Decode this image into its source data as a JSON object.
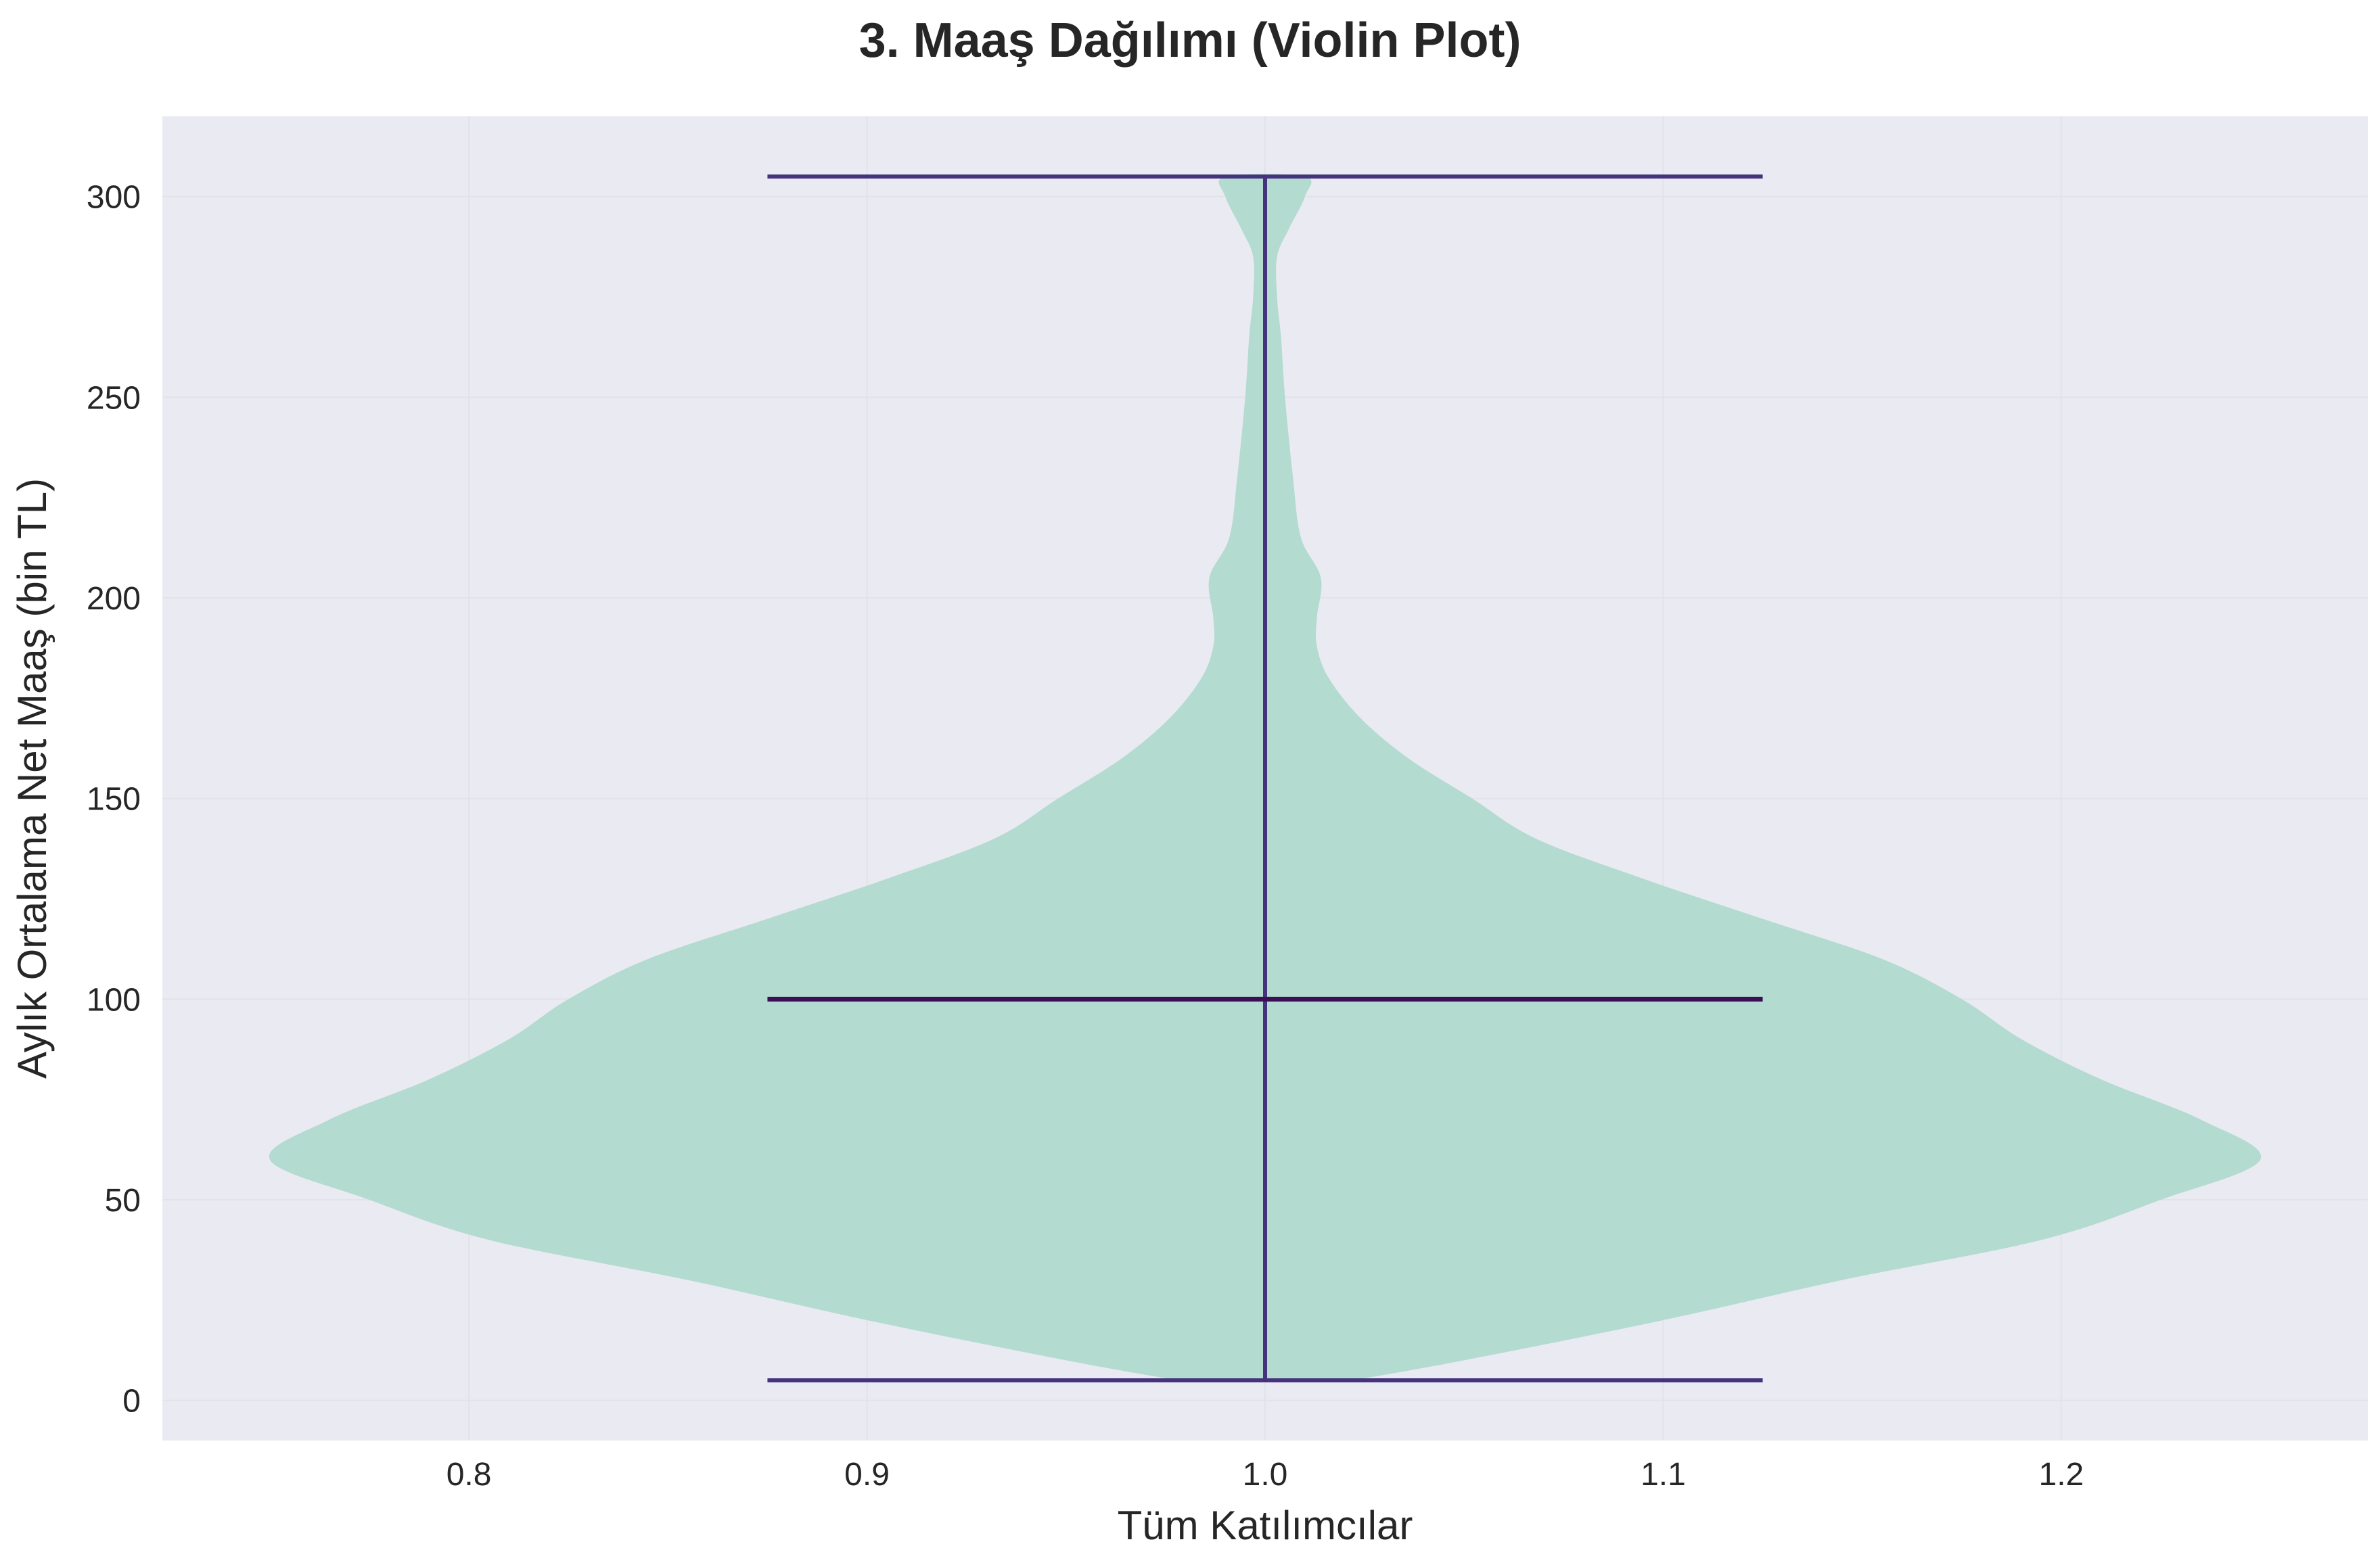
{
  "chart_data": {
    "type": "violin",
    "title": "3. Maaş Dağılımı (Violin Plot)",
    "xlabel": "Tüm Katılımcılar",
    "ylabel": "Aylık Ortalama Net Maaş (bin TL)",
    "xlim": [
      0.723,
      1.277
    ],
    "ylim": [
      -10,
      320
    ],
    "xticks": [
      0.8,
      0.9,
      1.0,
      1.1,
      1.2
    ],
    "xtick_labels": [
      "0.8",
      "0.9",
      "1.0",
      "1.1",
      "1.2"
    ],
    "yticks": [
      0,
      50,
      100,
      150,
      200,
      250,
      300
    ],
    "ytick_labels": [
      "0",
      "50",
      "100",
      "150",
      "200",
      "250",
      "300"
    ],
    "grid": true,
    "colors": {
      "plot_background": "#EAEAF2",
      "violin_fill": "#B3DBD0",
      "whisker_lines": "#45337D",
      "median_line": "#3B0F55",
      "grid_lines": "#E2E2E9"
    },
    "series": [
      {
        "position": 1.0,
        "min": 5,
        "max": 305,
        "median": 100,
        "density_profile": [
          {
            "y": 5,
            "half_width": 0.022
          },
          {
            "y": 10,
            "half_width": 0.05
          },
          {
            "y": 20,
            "half_width": 0.1
          },
          {
            "y": 30,
            "half_width": 0.145
          },
          {
            "y": 40,
            "half_width": 0.195
          },
          {
            "y": 50,
            "half_width": 0.225
          },
          {
            "y": 60,
            "half_width": 0.25
          },
          {
            "y": 70,
            "half_width": 0.235
          },
          {
            "y": 80,
            "half_width": 0.21
          },
          {
            "y": 90,
            "half_width": 0.19
          },
          {
            "y": 100,
            "half_width": 0.175
          },
          {
            "y": 110,
            "half_width": 0.155
          },
          {
            "y": 120,
            "half_width": 0.125
          },
          {
            "y": 130,
            "half_width": 0.095
          },
          {
            "y": 140,
            "half_width": 0.068
          },
          {
            "y": 150,
            "half_width": 0.052
          },
          {
            "y": 160,
            "half_width": 0.036
          },
          {
            "y": 170,
            "half_width": 0.024
          },
          {
            "y": 180,
            "half_width": 0.016
          },
          {
            "y": 188,
            "half_width": 0.013
          },
          {
            "y": 195,
            "half_width": 0.013
          },
          {
            "y": 205,
            "half_width": 0.014
          },
          {
            "y": 215,
            "half_width": 0.009
          },
          {
            "y": 230,
            "half_width": 0.007
          },
          {
            "y": 250,
            "half_width": 0.005
          },
          {
            "y": 265,
            "half_width": 0.004
          },
          {
            "y": 275,
            "half_width": 0.003
          },
          {
            "y": 285,
            "half_width": 0.003
          },
          {
            "y": 292,
            "half_width": 0.006
          },
          {
            "y": 300,
            "half_width": 0.01
          },
          {
            "y": 305,
            "half_width": 0.01
          }
        ]
      }
    ]
  }
}
